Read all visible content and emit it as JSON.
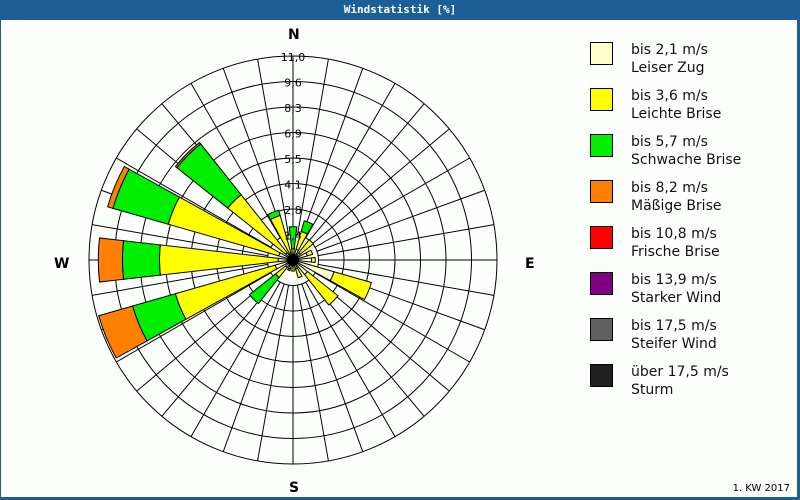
{
  "title": "Windstatistik [%]",
  "footer": "1. KW 2017",
  "compass": {
    "n": "N",
    "e": "E",
    "s": "S",
    "w": "W"
  },
  "legend": [
    {
      "range": "bis 2,1 m/s",
      "name": "Leiser Zug",
      "color": "#ffffcc"
    },
    {
      "range": "bis 3,6 m/s",
      "name": "Leichte Brise",
      "color": "#ffff00"
    },
    {
      "range": "bis 5,7 m/s",
      "name": "Schwache Brise",
      "color": "#00ee00"
    },
    {
      "range": "bis 8,2 m/s",
      "name": "Mäßige Brise",
      "color": "#ff8000"
    },
    {
      "range": "bis 10,8 m/s",
      "name": "Frische Brise",
      "color": "#ff0000"
    },
    {
      "range": "bis 13,9 m/s",
      "name": "Starker Wind",
      "color": "#800080"
    },
    {
      "range": "bis 17,5 m/s",
      "name": "Steifer Wind",
      "color": "#606060"
    },
    {
      "range": "über 17,5 m/s",
      "name": "Sturm",
      "color": "#202020"
    }
  ],
  "chart_data": {
    "type": "wind-rose",
    "title": "Windstatistik [%]",
    "radial_ticks": [
      "1,4",
      "2,8",
      "4,1",
      "5,5",
      "6,9",
      "8,3",
      "9,6",
      "11,0"
    ],
    "rmax": 11.0,
    "series": [
      "bis 2,1 m/s",
      "bis 3,6 m/s",
      "bis 5,7 m/s",
      "bis 8,2 m/s"
    ],
    "directions_deg": [
      0,
      22.5,
      45,
      67.5,
      90,
      112.5,
      135,
      157.5,
      180,
      202.5,
      225,
      247.5,
      270,
      292.5,
      315,
      337.5
    ],
    "cumulative_values": [
      [
        0.3,
        0.6,
        1.8,
        1.8
      ],
      [
        0.6,
        1.6,
        2.2,
        2.2
      ],
      [
        0.5,
        1.4,
        1.4,
        1.4
      ],
      [
        0.8,
        1.1,
        1.1,
        1.1
      ],
      [
        1.0,
        1.2,
        1.2,
        1.2
      ],
      [
        2.3,
        4.4,
        4.4,
        4.4
      ],
      [
        1.0,
        3.1,
        3.1,
        3.1
      ],
      [
        0.5,
        1.0,
        1.0,
        1.0
      ],
      [
        0.3,
        0.6,
        0.6,
        0.6
      ],
      [
        0.3,
        0.5,
        0.6,
        0.6
      ],
      [
        0.5,
        1.2,
        3.0,
        3.0
      ],
      [
        1.0,
        6.6,
        9.0,
        10.9
      ],
      [
        0.8,
        7.2,
        9.2,
        10.5
      ],
      [
        0.8,
        7.0,
        10.1,
        10.4
      ],
      [
        0.5,
        4.5,
        8.0,
        8.1
      ],
      [
        0.4,
        2.5,
        2.8,
        2.8
      ]
    ]
  }
}
